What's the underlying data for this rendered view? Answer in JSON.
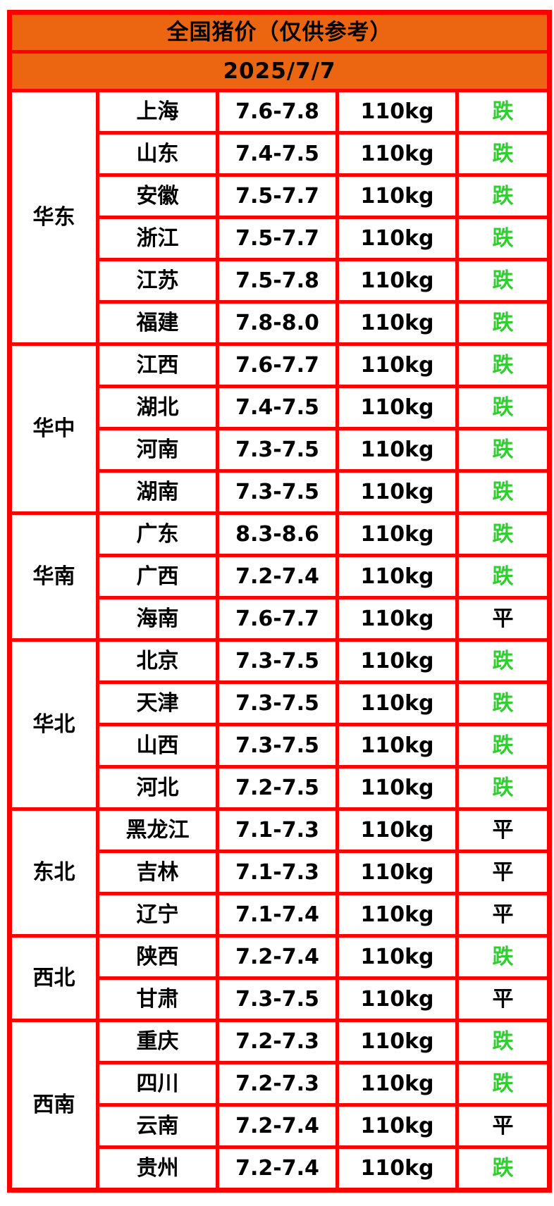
{
  "colors": {
    "header_bg": "#EC6611",
    "border": "#FF0000",
    "status_down_green": "#32CD32",
    "status_flat_black": "#000000",
    "cell_bg": "#FFFFFF",
    "text": "#000000"
  },
  "chart_data": {
    "type": "table",
    "title": "全国猪价（仅供参考）",
    "date": "2025/7/7",
    "layout": "region column merged per group; columns: region, province, price range, weight, trend status",
    "regions": [
      {
        "name": "华东",
        "rows": [
          {
            "province": "上海",
            "price": "7.6-7.8",
            "weight": "110kg",
            "status": "跌",
            "trend": "down"
          },
          {
            "province": "山东",
            "price": "7.4-7.5",
            "weight": "110kg",
            "status": "跌",
            "trend": "down"
          },
          {
            "province": "安徽",
            "price": "7.5-7.7",
            "weight": "110kg",
            "status": "跌",
            "trend": "down"
          },
          {
            "province": "浙江",
            "price": "7.5-7.7",
            "weight": "110kg",
            "status": "跌",
            "trend": "down"
          },
          {
            "province": "江苏",
            "price": "7.5-7.8",
            "weight": "110kg",
            "status": "跌",
            "trend": "down"
          },
          {
            "province": "福建",
            "price": "7.8-8.0",
            "weight": "110kg",
            "status": "跌",
            "trend": "down"
          }
        ]
      },
      {
        "name": "华中",
        "rows": [
          {
            "province": "江西",
            "price": "7.6-7.7",
            "weight": "110kg",
            "status": "跌",
            "trend": "down"
          },
          {
            "province": "湖北",
            "price": "7.4-7.5",
            "weight": "110kg",
            "status": "跌",
            "trend": "down"
          },
          {
            "province": "河南",
            "price": "7.3-7.5",
            "weight": "110kg",
            "status": "跌",
            "trend": "down"
          },
          {
            "province": "湖南",
            "price": "7.3-7.5",
            "weight": "110kg",
            "status": "跌",
            "trend": "down"
          }
        ]
      },
      {
        "name": "华南",
        "rows": [
          {
            "province": "广东",
            "price": "8.3-8.6",
            "weight": "110kg",
            "status": "跌",
            "trend": "down"
          },
          {
            "province": "广西",
            "price": "7.2-7.4",
            "weight": "110kg",
            "status": "跌",
            "trend": "down"
          },
          {
            "province": "海南",
            "price": "7.6-7.7",
            "weight": "110kg",
            "status": "平",
            "trend": "flat"
          }
        ]
      },
      {
        "name": "华北",
        "rows": [
          {
            "province": "北京",
            "price": "7.3-7.5",
            "weight": "110kg",
            "status": "跌",
            "trend": "down"
          },
          {
            "province": "天津",
            "price": "7.3-7.5",
            "weight": "110kg",
            "status": "跌",
            "trend": "down"
          },
          {
            "province": "山西",
            "price": "7.3-7.5",
            "weight": "110kg",
            "status": "跌",
            "trend": "down"
          },
          {
            "province": "河北",
            "price": "7.2-7.5",
            "weight": "110kg",
            "status": "跌",
            "trend": "down"
          }
        ]
      },
      {
        "name": "东北",
        "rows": [
          {
            "province": "黑龙江",
            "price": "7.1-7.3",
            "weight": "110kg",
            "status": "平",
            "trend": "flat"
          },
          {
            "province": "吉林",
            "price": "7.1-7.3",
            "weight": "110kg",
            "status": "平",
            "trend": "flat"
          },
          {
            "province": "辽宁",
            "price": "7.1-7.4",
            "weight": "110kg",
            "status": "平",
            "trend": "flat"
          }
        ]
      },
      {
        "name": "西北",
        "rows": [
          {
            "province": "陕西",
            "price": "7.2-7.4",
            "weight": "110kg",
            "status": "跌",
            "trend": "down"
          },
          {
            "province": "甘肃",
            "price": "7.3-7.5",
            "weight": "110kg",
            "status": "平",
            "trend": "flat"
          }
        ]
      },
      {
        "name": "西南",
        "rows": [
          {
            "province": "重庆",
            "price": "7.2-7.3",
            "weight": "110kg",
            "status": "跌",
            "trend": "down"
          },
          {
            "province": "四川",
            "price": "7.2-7.3",
            "weight": "110kg",
            "status": "跌",
            "trend": "down"
          },
          {
            "province": "云南",
            "price": "7.2-7.4",
            "weight": "110kg",
            "status": "平",
            "trend": "flat"
          },
          {
            "province": "贵州",
            "price": "7.2-7.4",
            "weight": "110kg",
            "status": "跌",
            "trend": "down"
          }
        ]
      }
    ]
  }
}
